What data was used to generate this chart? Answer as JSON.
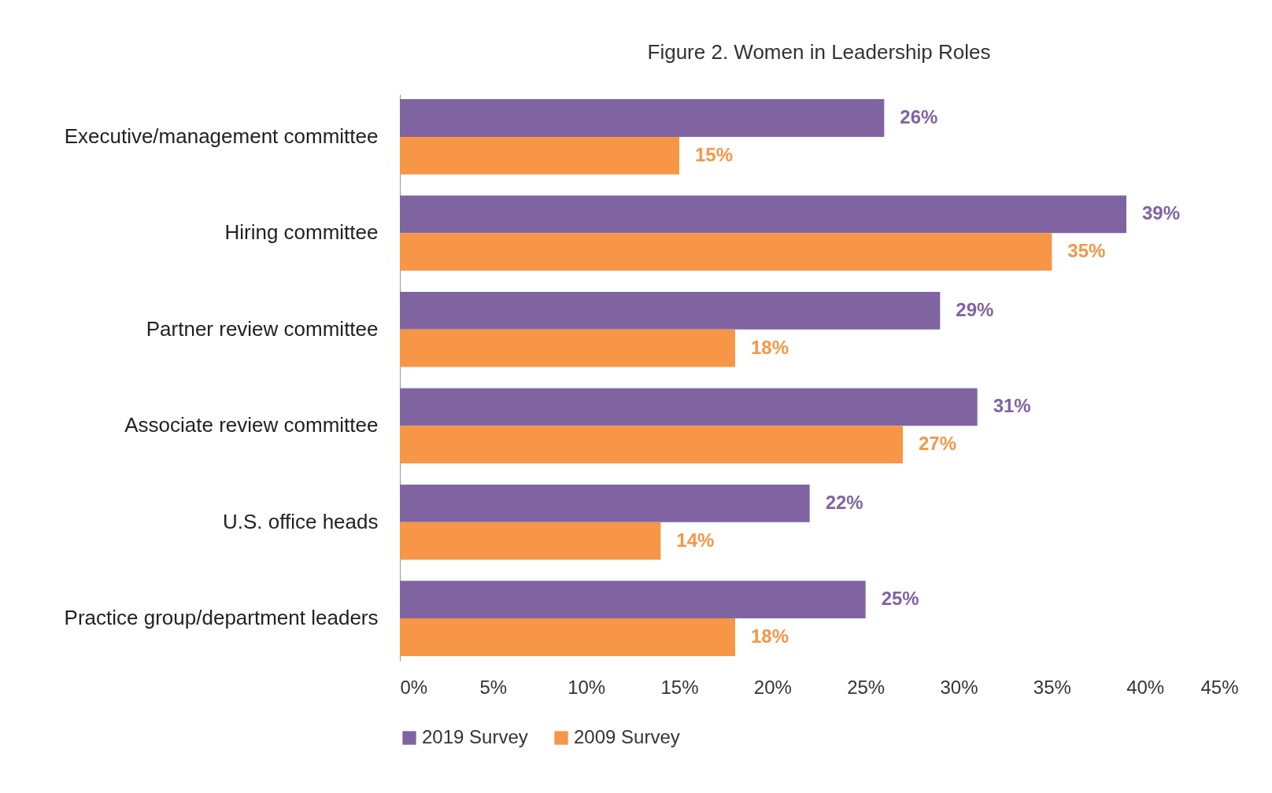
{
  "chart_data": {
    "type": "bar",
    "orientation": "horizontal",
    "title": "Figure 2. Women in Leadership Roles",
    "categories": [
      "Executive/management committee",
      "Hiring committee",
      "Partner review committee",
      "Associate review committee",
      "U.S. office heads",
      "Practice group/department leaders"
    ],
    "series": [
      {
        "name": "2019 Survey",
        "color": "#8064a2",
        "values": [
          26,
          39,
          29,
          31,
          22,
          25
        ],
        "value_labels": [
          "26%",
          "39%",
          "29%",
          "31%",
          "22%",
          "25%"
        ]
      },
      {
        "name": "2009 Survey",
        "color": "#f79646",
        "values": [
          15,
          35,
          18,
          27,
          14,
          18
        ],
        "value_labels": [
          "15%",
          "35%",
          "18%",
          "27%",
          "14%",
          "18%"
        ]
      }
    ],
    "xlim": [
      0,
      45
    ],
    "xticks": [
      {
        "value": 0,
        "label": "0%"
      },
      {
        "value": 5,
        "label": "5%"
      },
      {
        "value": 10,
        "label": "10%"
      },
      {
        "value": 15,
        "label": "15%"
      },
      {
        "value": 20,
        "label": "20%"
      },
      {
        "value": 25,
        "label": "25%"
      },
      {
        "value": 30,
        "label": "30%"
      },
      {
        "value": 35,
        "label": "35%"
      },
      {
        "value": 40,
        "label": "40%"
      },
      {
        "value": 45,
        "label": "45%"
      }
    ],
    "grid": false,
    "legend": "bottom"
  }
}
